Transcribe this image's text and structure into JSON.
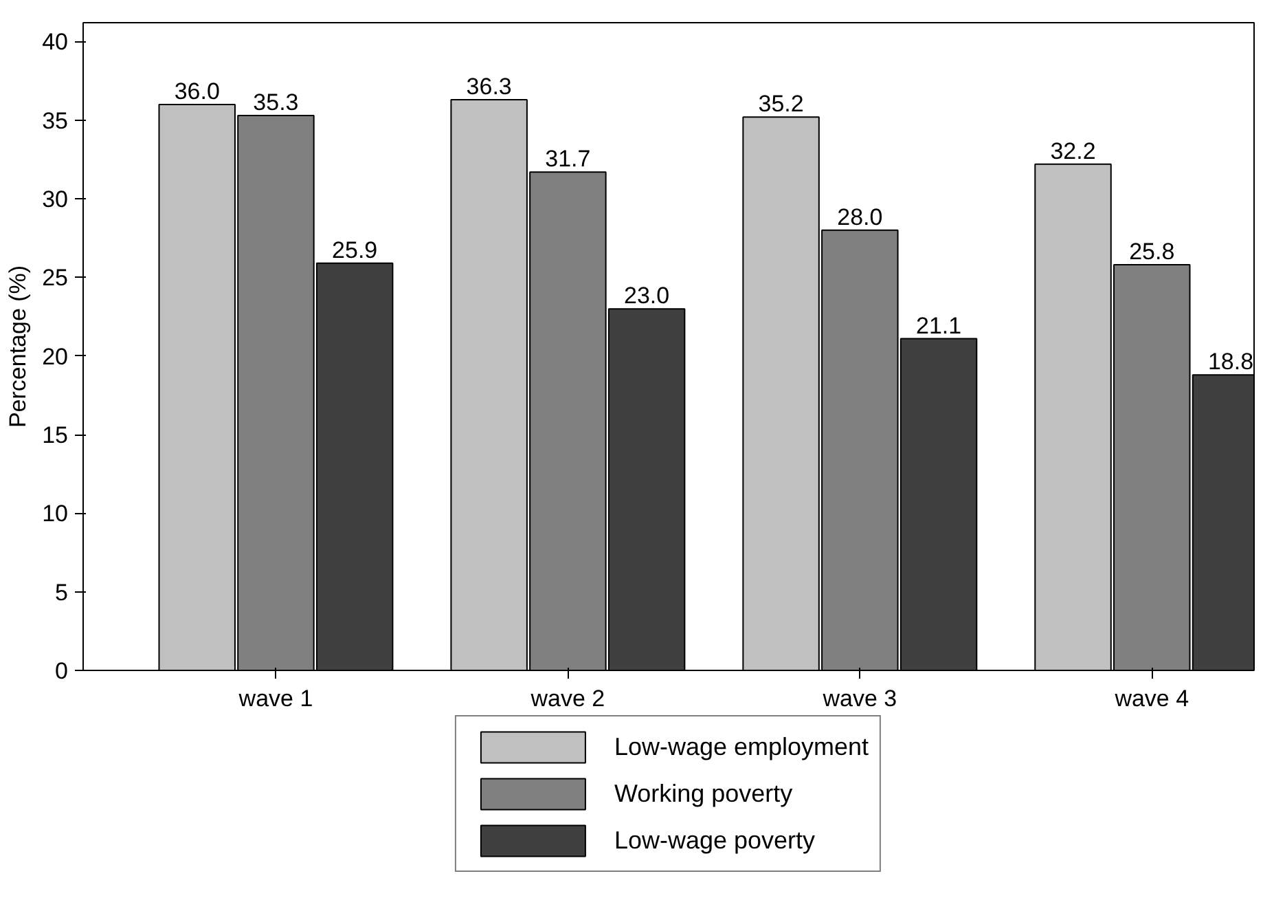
{
  "chart_data": {
    "type": "bar",
    "ylabel": "Percentage (%)",
    "categories": [
      "wave 1",
      "wave 2",
      "wave 3",
      "wave 4"
    ],
    "series": [
      {
        "name": "Low-wage employment",
        "color": "#c0c0c0",
        "values": [
          36.0,
          36.3,
          35.2,
          32.2
        ],
        "value_labels": [
          "36.0",
          "36.3",
          "35.2",
          "32.2"
        ]
      },
      {
        "name": "Working poverty",
        "color": "#808080",
        "values": [
          35.3,
          31.7,
          28.0,
          25.8
        ],
        "value_labels": [
          "35.3",
          "31.7",
          "28.0",
          "25.8"
        ]
      },
      {
        "name": "Low-wage poverty",
        "color": "#404040",
        "values": [
          25.9,
          23.0,
          21.1,
          18.8
        ],
        "value_labels": [
          "25.9",
          "23.0",
          "21.1",
          "18.8"
        ]
      }
    ],
    "ylim": [
      0,
      41.2
    ],
    "yticks": [
      0,
      5,
      10,
      15,
      20,
      25,
      30,
      35,
      40
    ],
    "grid": false,
    "legend": "bottom"
  }
}
